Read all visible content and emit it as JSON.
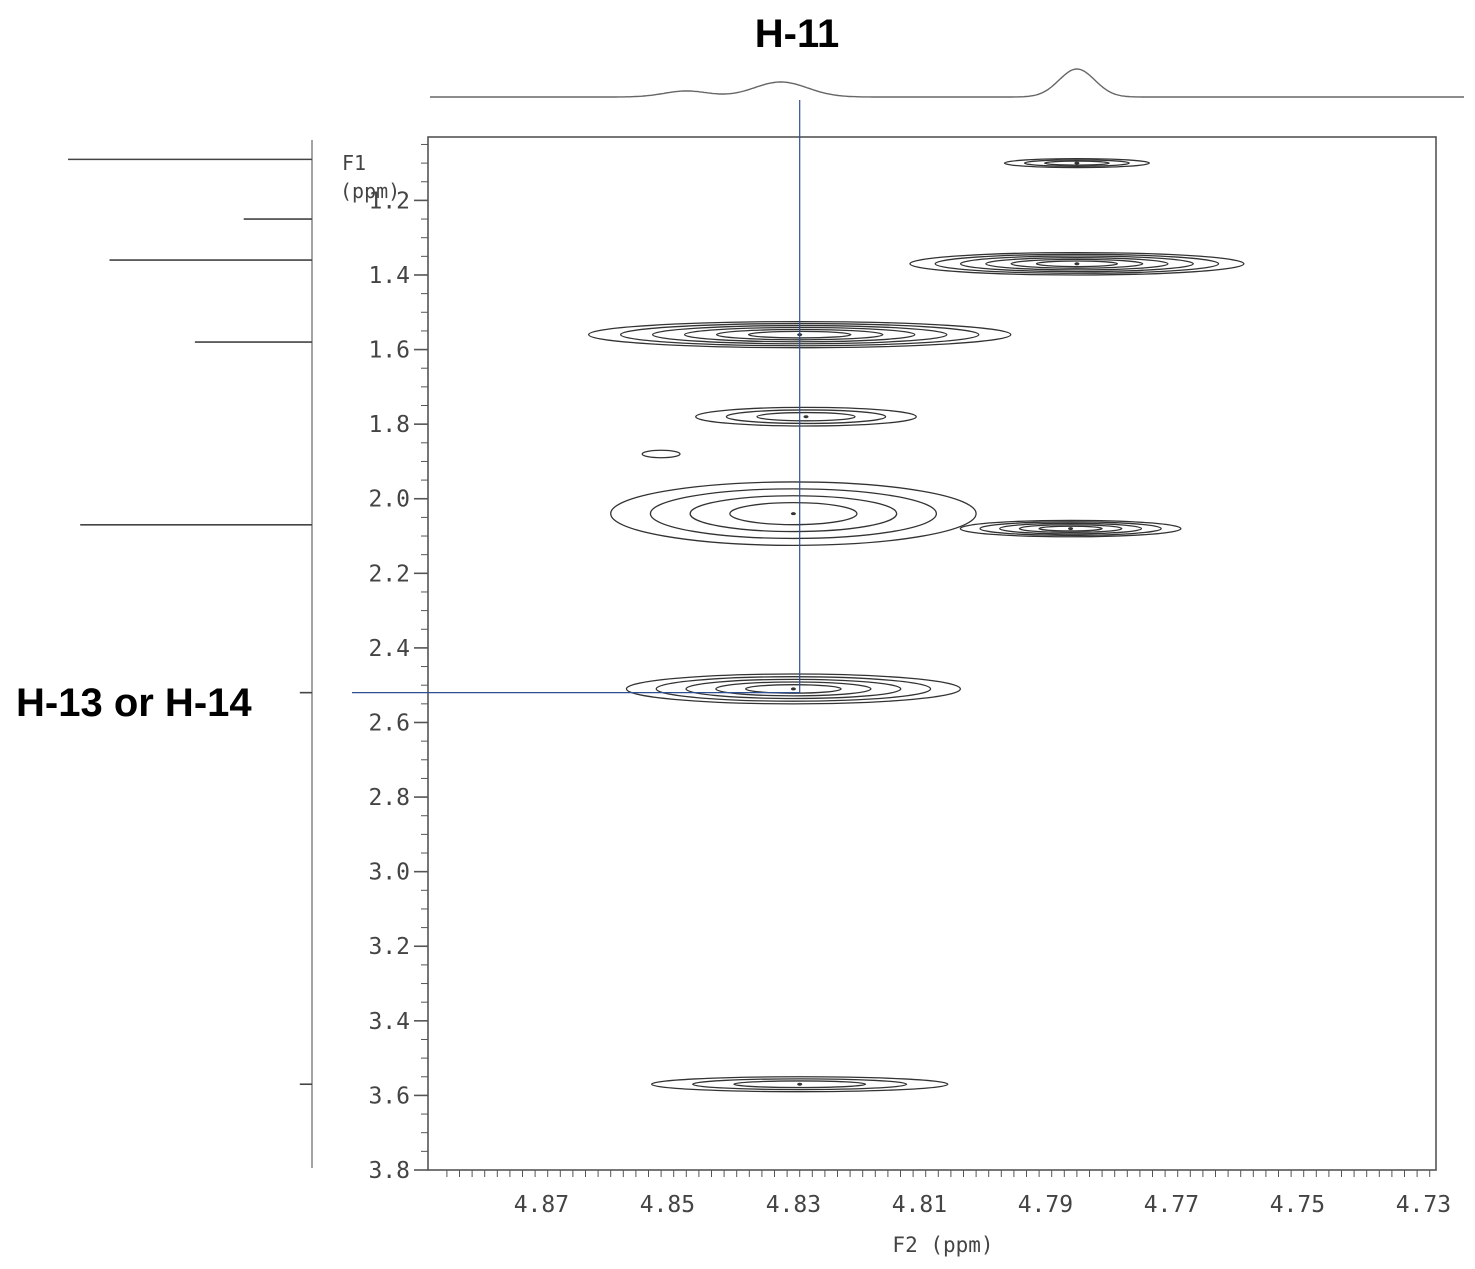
{
  "annotations": {
    "f2_marker": "H-11",
    "f1_marker": "H-13 or H-14"
  },
  "chart_data": {
    "type": "contour",
    "x_axis": {
      "label": "F2 (ppm)",
      "range": [
        4.888,
        4.728
      ],
      "reversed": true,
      "tick_labels": [
        "4.87",
        "4.85",
        "4.83",
        "4.81",
        "4.79",
        "4.77",
        "4.75",
        "4.73"
      ],
      "tick_values": [
        4.87,
        4.85,
        4.83,
        4.81,
        4.79,
        4.77,
        4.75,
        4.73
      ]
    },
    "y_axis": {
      "label_line1": "F1",
      "label_line2": "(ppm)",
      "range": [
        1.03,
        3.8
      ],
      "reversed": true,
      "tick_labels": [
        "1.2",
        "1.4",
        "1.6",
        "1.8",
        "2.0",
        "2.2",
        "2.4",
        "2.6",
        "2.8",
        "3.0",
        "3.2",
        "3.4",
        "3.6",
        "3.8"
      ],
      "tick_values": [
        1.2,
        1.4,
        1.6,
        1.8,
        2.0,
        2.2,
        2.4,
        2.6,
        2.8,
        3.0,
        3.2,
        3.4,
        3.6,
        3.8
      ]
    },
    "cross_peaks": [
      {
        "f2": 4.785,
        "f1": 1.1,
        "f2_halfwidth": 0.0115,
        "f1_halfwidth": 0.012,
        "levels": 3
      },
      {
        "f2": 4.785,
        "f1": 1.37,
        "f2_halfwidth": 0.0265,
        "f1_halfwidth": 0.03,
        "levels": 6
      },
      {
        "f2": 4.829,
        "f1": 1.56,
        "f2_halfwidth": 0.0335,
        "f1_halfwidth": 0.035,
        "levels": 6
      },
      {
        "f2": 4.828,
        "f1": 1.78,
        "f2_halfwidth": 0.0175,
        "f1_halfwidth": 0.025,
        "levels": 3
      },
      {
        "f2": 4.851,
        "f1": 1.88,
        "f2_halfwidth": 0.003,
        "f1_halfwidth": 0.01,
        "levels": 1
      },
      {
        "f2": 4.83,
        "f1": 2.04,
        "f2_halfwidth": 0.029,
        "f1_halfwidth": 0.085,
        "levels": 4
      },
      {
        "f2": 4.786,
        "f1": 2.08,
        "f2_halfwidth": 0.0175,
        "f1_halfwidth": 0.022,
        "levels": 5
      },
      {
        "f2": 4.83,
        "f1": 2.51,
        "f2_halfwidth": 0.0265,
        "f1_halfwidth": 0.04,
        "levels": 5
      },
      {
        "f2": 4.829,
        "f1": 3.57,
        "f2_halfwidth": 0.0235,
        "f1_halfwidth": 0.02,
        "levels": 3
      }
    ],
    "top_projection": [
      {
        "f2": 4.832,
        "height": 0.15,
        "width": 0.006
      },
      {
        "f2": 4.847,
        "height": 0.06,
        "width": 0.005
      },
      {
        "f2": 4.785,
        "height": 0.28,
        "width": 0.004
      }
    ],
    "left_projection_peaks": [
      {
        "f1": 1.09,
        "height": 1.0
      },
      {
        "f1": 1.25,
        "height": 0.28
      },
      {
        "f1": 1.36,
        "height": 0.83
      },
      {
        "f1": 1.58,
        "height": 0.48
      },
      {
        "f1": 2.07,
        "height": 0.95
      },
      {
        "f1": 2.52,
        "height": 0.05
      },
      {
        "f1": 3.57,
        "height": 0.05
      }
    ],
    "guide_lines": {
      "f2": 4.829,
      "f1": 2.52
    }
  }
}
